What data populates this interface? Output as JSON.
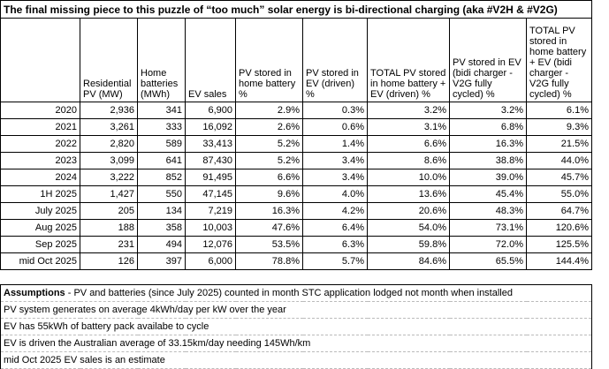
{
  "title": "The final missing piece to this puzzle of “too much” solar energy is bi-directional charging (aka #V2H & #V2G)",
  "table": {
    "header": [
      "",
      "Residential PV (MW)",
      "Home batteries (MWh)",
      "EV sales",
      "PV stored in home battery %",
      "PV stored in EV (driven) %",
      "TOTAL PV stored in home battery + EV (driven) %",
      "PV stored in EV (bidi charger - V2G fully cycled) %",
      "TOTAL PV stored in home battery + EV (bidi charger - V2G fully cycled) %"
    ],
    "rows": [
      [
        "2020",
        "2,936",
        "341",
        "6,900",
        "2.9%",
        "0.3%",
        "3.2%",
        "3.2%",
        "6.1%"
      ],
      [
        "2021",
        "3,261",
        "333",
        "16,092",
        "2.6%",
        "0.6%",
        "3.1%",
        "6.8%",
        "9.3%"
      ],
      [
        "2022",
        "2,820",
        "589",
        "33,413",
        "5.2%",
        "1.4%",
        "6.6%",
        "16.3%",
        "21.5%"
      ],
      [
        "2023",
        "3,099",
        "641",
        "87,430",
        "5.2%",
        "3.4%",
        "8.6%",
        "38.8%",
        "44.0%"
      ],
      [
        "2024",
        "3,222",
        "852",
        "91,495",
        "6.6%",
        "3.4%",
        "10.0%",
        "39.0%",
        "45.7%"
      ],
      [
        "1H 2025",
        "1,427",
        "550",
        "47,145",
        "9.6%",
        "4.0%",
        "13.6%",
        "45.4%",
        "55.0%"
      ],
      [
        "July 2025",
        "205",
        "134",
        "7,219",
        "16.3%",
        "4.2%",
        "20.6%",
        "48.3%",
        "64.7%"
      ],
      [
        "Aug 2025",
        "188",
        "358",
        "10,003",
        "47.6%",
        "6.4%",
        "54.0%",
        "73.1%",
        "120.6%"
      ],
      [
        "Sep 2025",
        "231",
        "494",
        "12,076",
        "53.5%",
        "6.3%",
        "59.8%",
        "72.0%",
        "125.5%"
      ],
      [
        "mid Oct 2025",
        "126",
        "397",
        "6,000",
        "78.8%",
        "5.7%",
        "84.6%",
        "65.5%",
        "144.4%"
      ]
    ]
  },
  "notes": [
    {
      "lead": "Assumptions",
      "text": " - PV and batteries (since July 2025) counted in month STC application lodged not month when installed"
    },
    {
      "text": "PV system generates on average 4kWh/day per kW over the year"
    },
    {
      "text": "EV has 55kWh of battery pack availabe to cycle"
    },
    {
      "text": "EV is driven the Australian average of 33.15km/day needing 145Wh/km"
    },
    {
      "text": "mid Oct 2025 EV sales is an estimate"
    }
  ]
}
